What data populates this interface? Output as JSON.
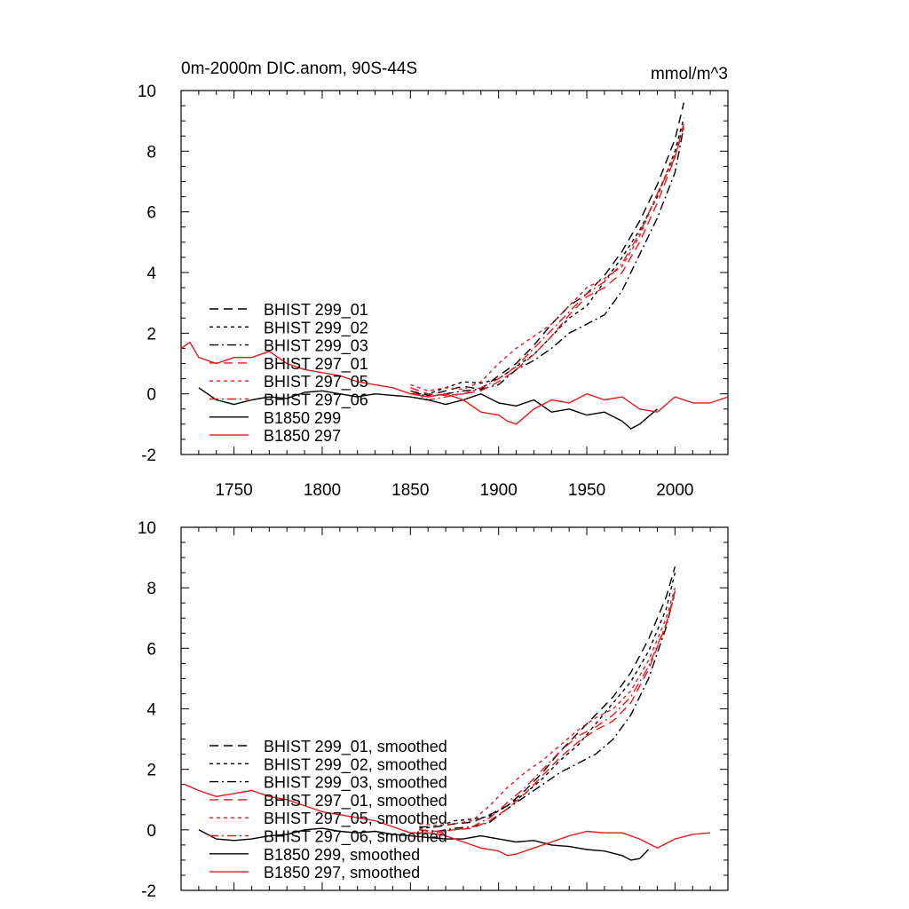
{
  "chart_data": [
    {
      "type": "line",
      "title": "0m-2000m DIC.anom, 90S-44S",
      "units": "mmol/m^3",
      "xlim": [
        1720,
        2030
      ],
      "ylim": [
        -2,
        10
      ],
      "xticks": [
        1750,
        1800,
        1850,
        1900,
        1950,
        2000
      ],
      "yticks": [
        -2,
        0,
        2,
        4,
        6,
        8,
        10
      ],
      "legend_position": "lower-left",
      "series": [
        {
          "name": "BHIST 299_01",
          "color": "#000000",
          "dash": "long-dash",
          "x": [
            1850,
            1860,
            1870,
            1880,
            1890,
            1900,
            1910,
            1920,
            1930,
            1940,
            1950,
            1960,
            1970,
            1980,
            1990,
            2000,
            2005
          ],
          "y": [
            0.1,
            -0.05,
            0.1,
            0.25,
            0.15,
            0.6,
            1.0,
            1.6,
            2.3,
            2.9,
            3.3,
            3.9,
            4.7,
            5.7,
            6.9,
            8.4,
            9.6
          ]
        },
        {
          "name": "BHIST 299_02",
          "color": "#000000",
          "dash": "short-dash",
          "x": [
            1850,
            1860,
            1870,
            1880,
            1890,
            1900,
            1910,
            1920,
            1930,
            1940,
            1950,
            1960,
            1970,
            1980,
            1990,
            2000,
            2005
          ],
          "y": [
            0.0,
            0.0,
            0.2,
            0.4,
            0.35,
            0.5,
            0.9,
            1.3,
            1.9,
            2.5,
            2.9,
            3.7,
            4.5,
            5.4,
            6.5,
            8.0,
            9.1
          ]
        },
        {
          "name": "BHIST 299_03",
          "color": "#000000",
          "dash": "dash-dot",
          "x": [
            1850,
            1860,
            1870,
            1880,
            1890,
            1900,
            1910,
            1920,
            1930,
            1940,
            1950,
            1960,
            1970,
            1980,
            1990,
            2000,
            2005
          ],
          "y": [
            0.1,
            -0.1,
            0.0,
            0.1,
            0.15,
            0.3,
            0.8,
            1.1,
            1.5,
            2.0,
            2.3,
            2.6,
            3.4,
            4.6,
            5.8,
            7.3,
            8.8
          ]
        },
        {
          "name": "BHIST 297_01",
          "color": "#e8191e",
          "dash": "long-dash",
          "x": [
            1850,
            1860,
            1870,
            1880,
            1890,
            1900,
            1910,
            1920,
            1930,
            1940,
            1950,
            1960,
            1970,
            1980,
            1990,
            2000,
            2005
          ],
          "y": [
            0.2,
            0.0,
            -0.05,
            0.0,
            0.1,
            0.4,
            0.8,
            1.3,
            1.9,
            2.6,
            3.2,
            3.5,
            4.0,
            5.0,
            6.3,
            7.8,
            8.9
          ]
        },
        {
          "name": "BHIST 297_05",
          "color": "#e8191e",
          "dash": "short-dash",
          "x": [
            1850,
            1860,
            1870,
            1880,
            1890,
            1900,
            1910,
            1920,
            1930,
            1940,
            1950,
            1960,
            1970,
            1980,
            1990,
            2000,
            2005
          ],
          "y": [
            0.3,
            0.1,
            0.2,
            0.15,
            0.4,
            1.0,
            1.5,
            1.9,
            2.3,
            2.9,
            3.5,
            3.8,
            4.2,
            5.2,
            6.6,
            7.9,
            8.9
          ]
        },
        {
          "name": "BHIST 297_06",
          "color": "#e8191e",
          "dash": "dash-dot",
          "x": [
            1850,
            1860,
            1870,
            1880,
            1890,
            1900,
            1910,
            1920,
            1930,
            1940,
            1950,
            1960,
            1970,
            1980,
            1990,
            2000,
            2005
          ],
          "y": [
            0.1,
            -0.2,
            -0.1,
            0.0,
            0.2,
            0.5,
            0.9,
            1.5,
            2.1,
            2.7,
            3.3,
            3.7,
            4.3,
            5.3,
            6.6,
            7.8,
            8.8
          ]
        },
        {
          "name": "B1850 299",
          "color": "#000000",
          "dash": "solid",
          "x": [
            1730,
            1740,
            1750,
            1760,
            1770,
            1780,
            1790,
            1800,
            1810,
            1820,
            1830,
            1840,
            1850,
            1860,
            1870,
            1880,
            1890,
            1900,
            1910,
            1920,
            1930,
            1940,
            1950,
            1960,
            1970,
            1975,
            1980,
            1990
          ],
          "y": [
            0.2,
            -0.2,
            -0.35,
            -0.2,
            -0.1,
            -0.15,
            0.05,
            0.1,
            0.0,
            -0.1,
            0.0,
            -0.05,
            -0.1,
            -0.2,
            -0.35,
            -0.2,
            0.0,
            -0.3,
            -0.4,
            -0.2,
            -0.6,
            -0.5,
            -0.7,
            -0.6,
            -0.9,
            -1.15,
            -1.0,
            -0.5
          ]
        },
        {
          "name": "B1850 297",
          "color": "#e8191e",
          "dash": "solid",
          "x": [
            1720,
            1725,
            1730,
            1740,
            1750,
            1760,
            1770,
            1780,
            1790,
            1800,
            1810,
            1820,
            1830,
            1840,
            1850,
            1860,
            1870,
            1880,
            1890,
            1900,
            1905,
            1910,
            1920,
            1930,
            1940,
            1950,
            1960,
            1970,
            1980,
            1990,
            2000,
            2010,
            2020,
            2030
          ],
          "y": [
            1.5,
            1.7,
            1.2,
            1.0,
            1.2,
            1.2,
            1.4,
            1.0,
            0.8,
            0.7,
            0.6,
            0.4,
            0.3,
            0.2,
            0.0,
            -0.1,
            0.0,
            -0.2,
            -0.6,
            -0.7,
            -0.9,
            -1.0,
            -0.5,
            -0.2,
            -0.3,
            0.0,
            -0.2,
            -0.1,
            -0.5,
            -0.6,
            -0.1,
            -0.3,
            -0.3,
            -0.1
          ]
        }
      ]
    },
    {
      "type": "line",
      "xlim": [
        1720,
        2030
      ],
      "ylim": [
        -2,
        10
      ],
      "yticks": [
        -2,
        0,
        2,
        4,
        6,
        8,
        10
      ],
      "legend_position": "lower-left",
      "series": [
        {
          "name": "BHIST 299_01, smoothed",
          "color": "#000000",
          "dash": "long-dash",
          "x": [
            1855,
            1865,
            1875,
            1885,
            1895,
            1905,
            1915,
            1925,
            1935,
            1945,
            1955,
            1965,
            1975,
            1985,
            1995,
            2000
          ],
          "y": [
            0.1,
            0.1,
            0.2,
            0.25,
            0.5,
            0.8,
            1.3,
            1.9,
            2.6,
            3.2,
            3.8,
            4.4,
            5.2,
            6.3,
            7.7,
            8.7
          ]
        },
        {
          "name": "BHIST 299_02, smoothed",
          "color": "#000000",
          "dash": "short-dash",
          "x": [
            1855,
            1865,
            1875,
            1885,
            1895,
            1905,
            1915,
            1925,
            1935,
            1945,
            1955,
            1965,
            1975,
            1985,
            1995,
            2000
          ],
          "y": [
            0.05,
            0.1,
            0.3,
            0.35,
            0.45,
            0.8,
            1.2,
            1.7,
            2.3,
            2.8,
            3.5,
            4.2,
            4.9,
            5.9,
            7.3,
            8.5
          ]
        },
        {
          "name": "BHIST 299_03, smoothed",
          "color": "#000000",
          "dash": "dash-dot",
          "x": [
            1855,
            1865,
            1875,
            1885,
            1895,
            1905,
            1915,
            1925,
            1935,
            1945,
            1955,
            1965,
            1975,
            1985,
            1995,
            2000
          ],
          "y": [
            0.0,
            -0.05,
            0.05,
            0.1,
            0.25,
            0.7,
            1.1,
            1.5,
            1.9,
            2.2,
            2.5,
            3.0,
            3.8,
            5.0,
            6.7,
            7.9
          ]
        },
        {
          "name": "BHIST 297_01, smoothed",
          "color": "#e8191e",
          "dash": "long-dash",
          "x": [
            1855,
            1865,
            1875,
            1885,
            1895,
            1905,
            1915,
            1925,
            1935,
            1945,
            1955,
            1965,
            1975,
            1985,
            1995,
            2000
          ],
          "y": [
            0.0,
            -0.05,
            0.0,
            0.05,
            0.3,
            0.7,
            1.2,
            1.8,
            2.4,
            2.9,
            3.3,
            3.6,
            4.2,
            5.3,
            6.8,
            7.9
          ]
        },
        {
          "name": "BHIST 297_05, smoothed",
          "color": "#e8191e",
          "dash": "short-dash",
          "x": [
            1855,
            1865,
            1875,
            1885,
            1895,
            1905,
            1915,
            1925,
            1935,
            1945,
            1955,
            1965,
            1975,
            1985,
            1995,
            2000
          ],
          "y": [
            0.2,
            0.15,
            0.2,
            0.3,
            0.8,
            1.4,
            1.9,
            2.3,
            2.8,
            3.3,
            3.7,
            4.0,
            4.6,
            5.6,
            7.0,
            8.0
          ]
        },
        {
          "name": "BHIST 297_06, smoothed",
          "color": "#e8191e",
          "dash": "dash-dot",
          "x": [
            1855,
            1865,
            1875,
            1885,
            1895,
            1905,
            1915,
            1925,
            1935,
            1945,
            1955,
            1965,
            1975,
            1985,
            1995,
            2000
          ],
          "y": [
            0.0,
            -0.1,
            0.0,
            0.1,
            0.4,
            0.9,
            1.4,
            2.0,
            2.6,
            3.1,
            3.4,
            3.8,
            4.4,
            5.4,
            6.8,
            7.8
          ]
        },
        {
          "name": "B1850 299, smoothed",
          "color": "#000000",
          "dash": "solid",
          "x": [
            1730,
            1740,
            1750,
            1760,
            1770,
            1780,
            1790,
            1800,
            1810,
            1820,
            1830,
            1840,
            1850,
            1860,
            1870,
            1880,
            1890,
            1900,
            1910,
            1920,
            1930,
            1940,
            1950,
            1960,
            1970,
            1975,
            1980,
            1985
          ],
          "y": [
            0.0,
            -0.3,
            -0.35,
            -0.3,
            -0.2,
            -0.15,
            0.0,
            0.05,
            -0.05,
            -0.1,
            -0.05,
            -0.15,
            -0.2,
            -0.25,
            -0.3,
            -0.3,
            -0.2,
            -0.3,
            -0.4,
            -0.35,
            -0.5,
            -0.55,
            -0.65,
            -0.7,
            -0.85,
            -1.0,
            -0.95,
            -0.65
          ]
        },
        {
          "name": "B1850 297, smoothed",
          "color": "#e8191e",
          "dash": "solid",
          "x": [
            1722,
            1730,
            1740,
            1750,
            1760,
            1770,
            1780,
            1790,
            1800,
            1810,
            1820,
            1830,
            1840,
            1850,
            1860,
            1870,
            1880,
            1890,
            1900,
            1905,
            1910,
            1920,
            1930,
            1940,
            1950,
            1960,
            1970,
            1980,
            1990,
            2000,
            2010,
            2020
          ],
          "y": [
            1.5,
            1.3,
            1.1,
            1.2,
            1.3,
            1.1,
            1.0,
            0.8,
            0.6,
            0.5,
            0.4,
            0.3,
            0.1,
            -0.1,
            -0.1,
            -0.2,
            -0.4,
            -0.6,
            -0.7,
            -0.85,
            -0.8,
            -0.6,
            -0.4,
            -0.2,
            -0.05,
            -0.1,
            -0.1,
            -0.3,
            -0.6,
            -0.3,
            -0.15,
            -0.1
          ]
        }
      ]
    }
  ]
}
